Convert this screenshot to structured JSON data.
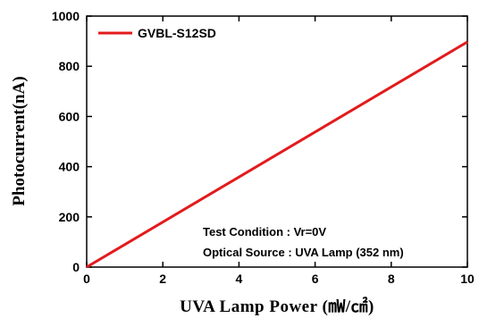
{
  "chart_data": {
    "type": "line",
    "xlabel": "UVA Lamp Power (㎽/㎠)",
    "ylabel": "Photocurrent(nA)",
    "xlim": [
      0,
      10
    ],
    "ylim": [
      0,
      1000
    ],
    "xticks": [
      0,
      2,
      4,
      6,
      8,
      10
    ],
    "yticks": [
      0,
      200,
      400,
      600,
      800,
      1000
    ],
    "grid": false,
    "legend_position": "top-left",
    "series": [
      {
        "name": "GVBL-S12SD",
        "color": "#e31a1c",
        "x": [
          0,
          10
        ],
        "y": [
          0,
          897
        ]
      }
    ],
    "annotations": [
      "Test Condition : Vr=0V",
      "Optical Source : UVA Lamp (352 nm)"
    ]
  }
}
